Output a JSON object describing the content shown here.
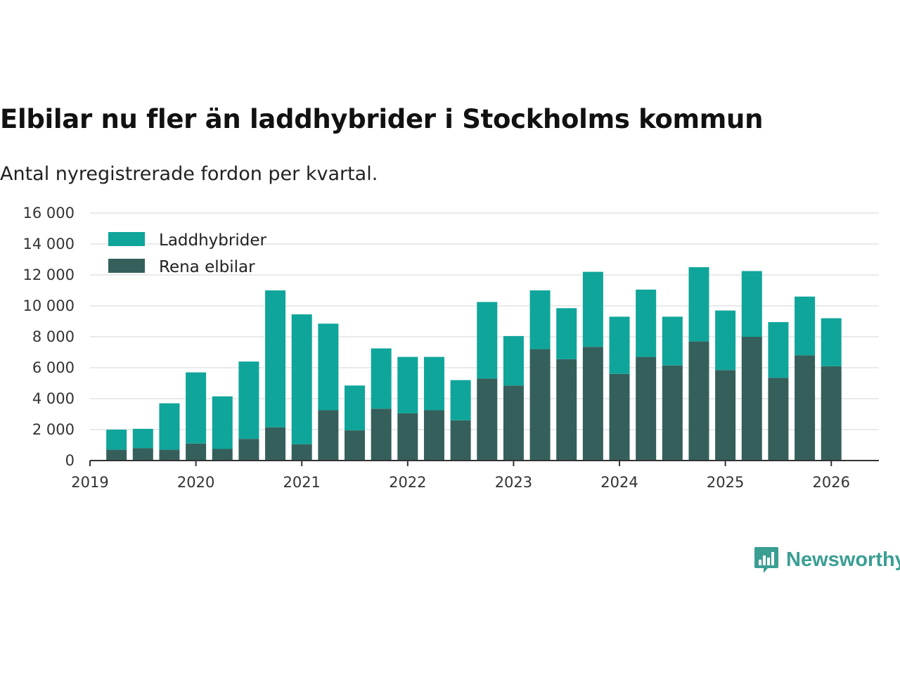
{
  "title": "Elbilar nu fler än laddhybrider i Stockholms kommun",
  "subtitle": "Antal nyregistrerade fordon per kvartal.",
  "brand": {
    "name": "Newsworthy",
    "icon": "newsworthy-logo-icon"
  },
  "colors": {
    "laddhybrider": "#0fa59a",
    "rena_elbilar": "#355f5b",
    "grid": "#e3e3e3",
    "axis": "#333333"
  },
  "chart_data": {
    "type": "bar",
    "stacked": true,
    "title": "Elbilar nu fler än laddhybrider i Stockholms kommun",
    "subtitle": "Antal nyregistrerade fordon per kvartal.",
    "xlabel": "",
    "ylabel": "",
    "ylim": [
      0,
      16000
    ],
    "yticks": [
      0,
      2000,
      4000,
      6000,
      8000,
      10000,
      12000,
      14000,
      16000
    ],
    "ytick_labels": [
      "0",
      "2 000",
      "4 000",
      "6 000",
      "8 000",
      "10 000",
      "12 000",
      "14 000",
      "16 000"
    ],
    "xlim": [
      2019.0,
      2026.45
    ],
    "xticks": [
      2019,
      2020,
      2021,
      2022,
      2023,
      2024,
      2025,
      2026
    ],
    "xtick_labels": [
      "2019",
      "2020",
      "2021",
      "2022",
      "2023",
      "2024",
      "2025",
      "2026"
    ],
    "grid": true,
    "legend": "top-left",
    "x": [
      2019.25,
      2019.5,
      2019.75,
      2020.0,
      2020.25,
      2020.5,
      2020.75,
      2021.0,
      2021.25,
      2021.5,
      2021.75,
      2022.0,
      2022.25,
      2022.5,
      2022.75,
      2023.0,
      2023.25,
      2023.5,
      2023.75,
      2024.0,
      2024.25,
      2024.5,
      2024.75,
      2025.0,
      2025.25,
      2025.5,
      2025.75,
      2026.0
    ],
    "series": [
      {
        "name": "Rena elbilar",
        "key": "rena_elbilar",
        "values": [
          700,
          800,
          700,
          1100,
          750,
          1400,
          2150,
          1050,
          3250,
          1950,
          3350,
          3050,
          3250,
          2600,
          5300,
          4850,
          7200,
          6550,
          7350,
          5600,
          6700,
          6150,
          7700,
          5850,
          8000,
          5350,
          6800,
          6100
        ]
      },
      {
        "name": "Laddhybrider",
        "key": "laddhybrider",
        "values": [
          1300,
          1250,
          3000,
          4600,
          3400,
          5000,
          8850,
          8400,
          5600,
          2900,
          3900,
          3650,
          3450,
          2600,
          4950,
          3200,
          3800,
          3300,
          4850,
          3700,
          4350,
          3150,
          4800,
          3850,
          4250,
          3600,
          3800,
          3100
        ]
      }
    ]
  }
}
